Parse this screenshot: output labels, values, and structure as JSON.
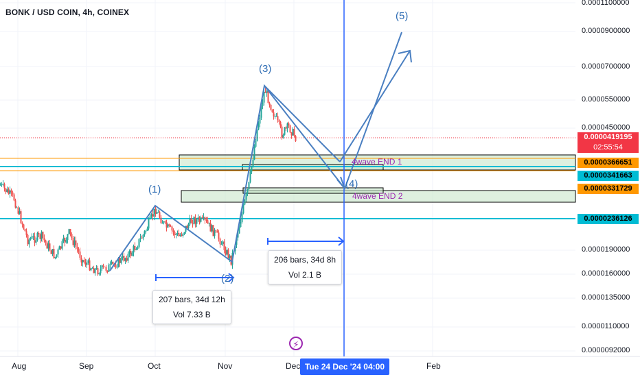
{
  "title": "BONK / USD COIN, 4h, COINEX",
  "y_axis_labels": [
    "0.0001100000",
    "0.0000900000",
    "0.0000700000",
    "0.0000550000",
    "0.0000450000",
    "0.0000190000",
    "0.0000160000",
    "0.0000135000",
    "0.0000110000",
    "0.0000092000"
  ],
  "price_tags": [
    {
      "value": "0.0000419195",
      "color": "#f23645",
      "text_color": "#ffffff"
    },
    {
      "value": "02:55:54",
      "color": "#f23645",
      "text_color": "#ffffff"
    },
    {
      "value": "0.0000366651",
      "color": "#ff9800",
      "text_color": "#000000"
    },
    {
      "value": "0.0000341663",
      "color": "#00bcd4",
      "text_color": "#000000"
    },
    {
      "value": "0.0000331729",
      "color": "#ff9800",
      "text_color": "#000000"
    },
    {
      "value": "0.0000236126",
      "color": "#00bcd4",
      "text_color": "#000000"
    }
  ],
  "x_axis_labels": [
    "Aug",
    "Sep",
    "Oct",
    "Nov",
    "Dec",
    "Feb"
  ],
  "crosshair_date": "Tue 24 Dec '24   04:00",
  "wave_labels": [
    "(1)",
    "(2)",
    "(3)",
    "(4)",
    "(5)"
  ],
  "zone_labels": [
    "4wave END 1",
    "4wave END 2"
  ],
  "measure_boxes": [
    {
      "line1": "207 bars, 34d 12h",
      "line2": "Vol 7.33 B"
    },
    {
      "line1": "206 bars, 34d 8h",
      "line2": "Vol 2.1 B"
    }
  ],
  "colors": {
    "up": "#26a69a",
    "down": "#ef5350",
    "accent": "#2962ff",
    "wave_line": "#4a7fc1",
    "zone_fill": "#c8e6c9",
    "cyan": "#00bcd4",
    "orange": "#ff9800"
  },
  "chart_data": {
    "type": "candlestick",
    "title": "BONK / USD COIN, 4h, COINEX",
    "y_scale": "log",
    "x_range": [
      "Jul 2024",
      "Feb 2025"
    ],
    "approx_close_path": [
      {
        "date": "Aug",
        "price": 2.4e-05
      },
      {
        "date": "mid Aug",
        "price": 1.9e-05
      },
      {
        "date": "Sep",
        "price": 1.75e-05
      },
      {
        "date": "mid Sep",
        "price": 1.65e-05
      },
      {
        "date": "Oct",
        "price": 2.36e-05
      },
      {
        "date": "mid Oct",
        "price": 2.2e-05
      },
      {
        "date": "Nov",
        "price": 1.75e-05
      },
      {
        "date": "mid Nov",
        "price": 5.5e-05
      },
      {
        "date": "Nov 25",
        "price": 4.5e-05
      },
      {
        "date": "Dec",
        "price": 4.19195e-05
      }
    ],
    "last_price": 4.19195e-05,
    "horizontal_levels": [
      3.66651e-05,
      3.41663e-05,
      3.31729e-05,
      2.36126e-05
    ]
  }
}
